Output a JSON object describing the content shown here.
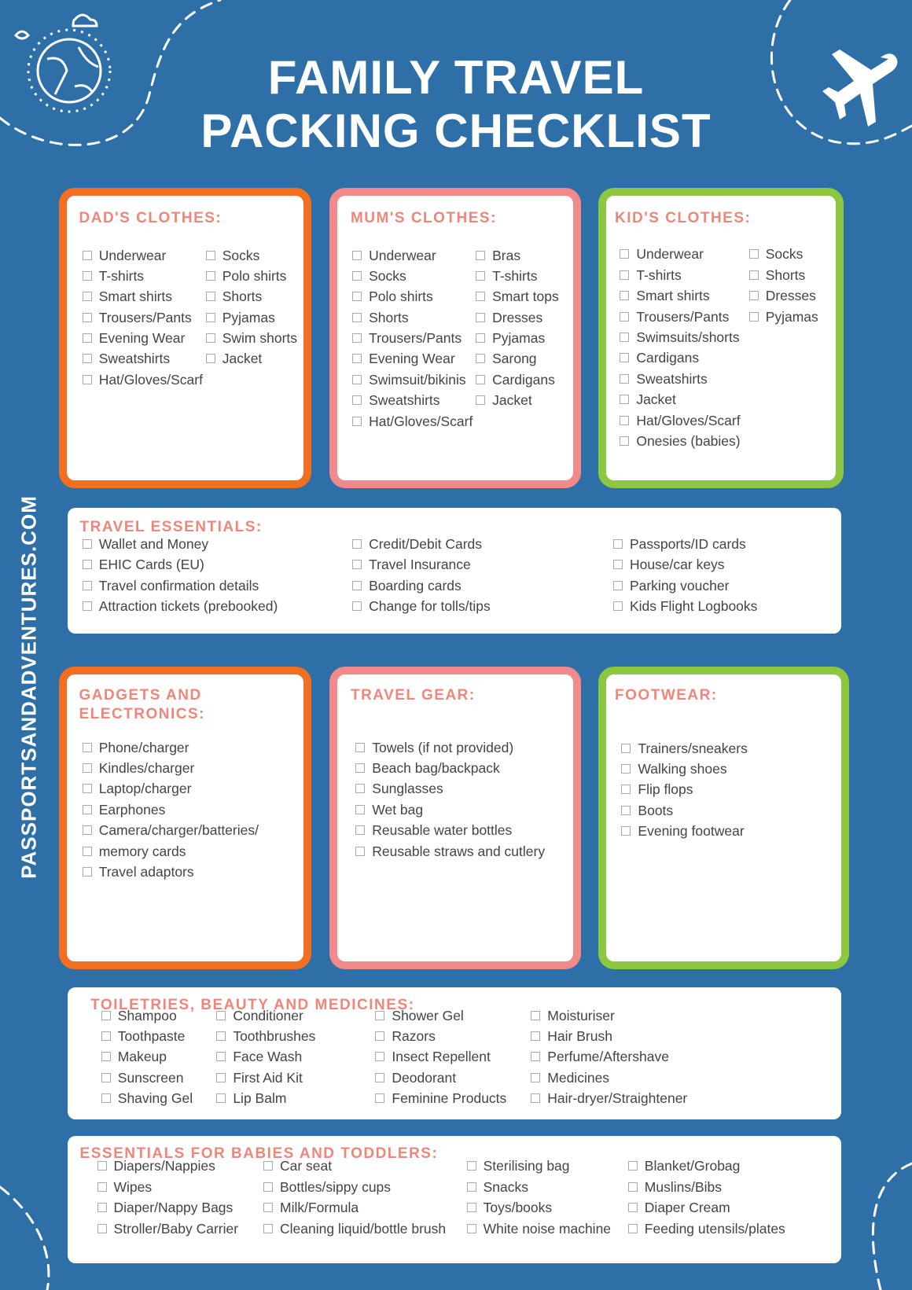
{
  "title": [
    "FAMILY TRAVEL",
    "PACKING CHECKLIST"
  ],
  "side_text": "PASSPORTSANDADVENTURES.COM",
  "sections": [
    {
      "heading": "DAD'S CLOTHES:",
      "columns": [
        [
          "Underwear",
          "T-shirts",
          "Smart shirts",
          "Trousers/Pants",
          "Evening Wear",
          "Sweatshirts",
          "Hat/Gloves/Scarf"
        ],
        [
          "Socks",
          "Polo shirts",
          "Shorts",
          "Pyjamas",
          "Swim shorts",
          "Jacket"
        ]
      ]
    },
    {
      "heading": "MUM'S CLOTHES:",
      "columns": [
        [
          "Underwear",
          "Socks",
          "Polo shirts",
          "Shorts",
          "Trousers/Pants",
          "Evening Wear",
          "Swimsuit/bikinis",
          "Sweatshirts",
          "Hat/Gloves/Scarf"
        ],
        [
          "Bras",
          "T-shirts",
          "Smart tops",
          "Dresses",
          "Pyjamas",
          "Sarong",
          "Cardigans",
          "Jacket"
        ]
      ]
    },
    {
      "heading": "KID'S CLOTHES:",
      "columns": [
        [
          "Underwear",
          "T-shirts",
          "Smart shirts",
          "Trousers/Pants",
          "Swimsuits/shorts",
          "Cardigans",
          "Sweatshirts",
          "Jacket",
          "Hat/Gloves/Scarf",
          "Onesies (babies)"
        ],
        [
          "Socks",
          "Shorts",
          "Dresses",
          "Pyjamas"
        ]
      ]
    },
    {
      "heading": "TRAVEL ESSENTIALS:",
      "columns": [
        [
          "Wallet and Money",
          "EHIC Cards (EU)",
          "Travel confirmation details",
          "Attraction tickets (prebooked)"
        ],
        [
          "Credit/Debit Cards",
          "Travel Insurance",
          "Boarding cards",
          "Change for tolls/tips"
        ],
        [
          "Passports/ID cards",
          "House/car keys",
          "Parking voucher",
          "Kids Flight Logbooks"
        ]
      ]
    },
    {
      "heading": "GADGETS AND ELECTRONICS:",
      "columns": [
        [
          "Phone/charger",
          "Kindles/charger",
          "Laptop/charger",
          "Earphones",
          "Camera/charger/batteries/",
          "memory cards",
          "Travel adaptors"
        ]
      ]
    },
    {
      "heading": "TRAVEL GEAR:",
      "columns": [
        [
          "Towels (if not provided)",
          "Beach bag/backpack",
          "Sunglasses",
          "Wet bag",
          "Reusable water bottles",
          "Reusable straws and cutlery"
        ]
      ]
    },
    {
      "heading": "FOOTWEAR:",
      "columns": [
        [
          "Trainers/sneakers",
          "Walking shoes",
          "Flip flops",
          "Boots",
          "Evening footwear"
        ]
      ]
    },
    {
      "heading": "TOILETRIES, BEAUTY AND MEDICINES:",
      "columns": [
        [
          "Shampoo",
          "Toothpaste",
          "Makeup",
          "Sunscreen",
          "Shaving Gel"
        ],
        [
          "Conditioner",
          "Toothbrushes",
          "Face Wash",
          "First Aid Kit",
          "Lip Balm"
        ],
        [
          "Shower Gel",
          "Razors",
          "Insect Repellent",
          "Deodorant",
          "Feminine Products"
        ],
        [
          "Moisturiser",
          "Hair Brush",
          "Perfume/Aftershave",
          "Medicines",
          "Hair-dryer/Straightener"
        ]
      ]
    },
    {
      "heading": "ESSENTIALS FOR BABIES AND TODDLERS:",
      "columns": [
        [
          "Diapers/Nappies",
          "Wipes",
          "Diaper/Nappy Bags",
          "Stroller/Baby Carrier"
        ],
        [
          "Car seat",
          "Bottles/sippy cups",
          "Milk/Formula",
          "Cleaning liquid/bottle brush"
        ],
        [
          "Sterilising bag",
          "Snacks",
          "Toys/books",
          "White noise machine"
        ],
        [
          "Blanket/Grobag",
          "Muslins/Bibs",
          "Diaper Cream",
          "Feeding utensils/plates"
        ]
      ]
    }
  ]
}
